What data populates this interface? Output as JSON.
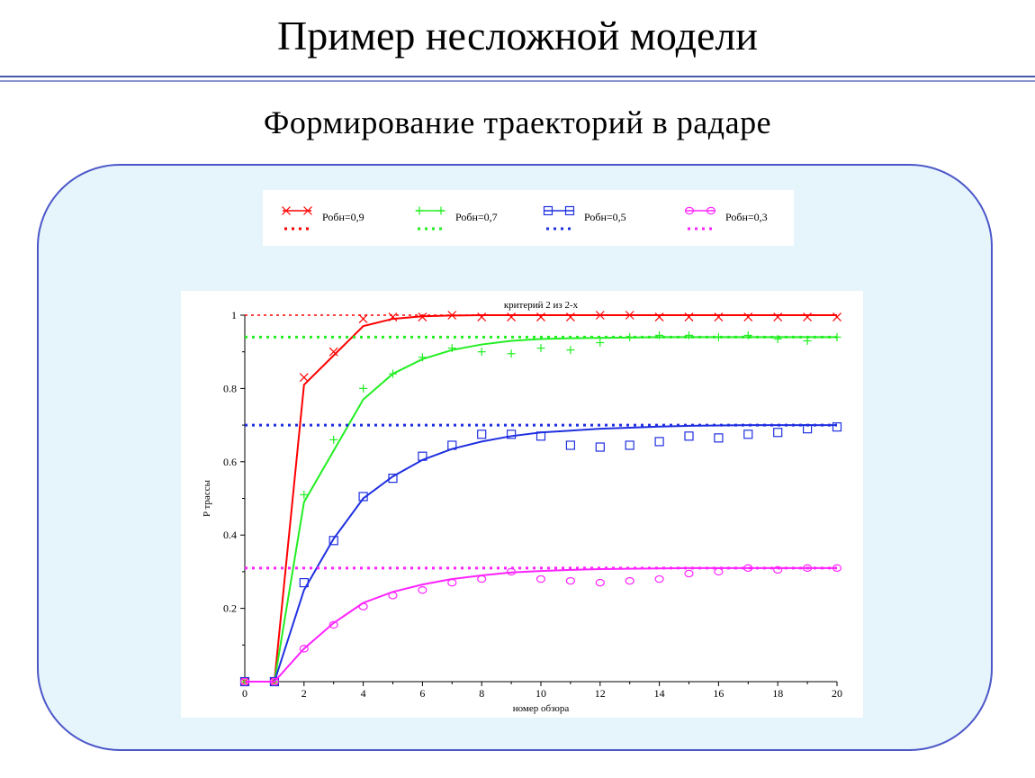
{
  "slide": {
    "title": "Пример несложной модели",
    "subtitle": "Формирование  траекторий  в радаре"
  },
  "colors": {
    "red": "#ff0000",
    "green": "#22ee22",
    "blue": "#1f2fe0",
    "magenta": "#ff22ff",
    "panel_border": "#4b57c8",
    "panel_fill": "#e6f4fb",
    "title_rule": "#4a5aa8"
  },
  "chart_data": {
    "type": "line",
    "title": "критерий 2 из 2-х",
    "xlabel": "номер обзора",
    "ylabel": "P трассы",
    "xlim": [
      0,
      20
    ],
    "ylim": [
      0,
      1
    ],
    "x_ticks": [
      "0",
      "2",
      "4",
      "6",
      "8",
      "10",
      "12",
      "14",
      "16",
      "18",
      "20"
    ],
    "y_ticks": [
      "0.2",
      "0.4",
      "0.6",
      "0.8",
      "1"
    ],
    "grid": false,
    "legend_position": "above chart",
    "legend": [
      {
        "label": "Робн=0,9",
        "color": "red",
        "marker": "x-mark-icon"
      },
      {
        "label": "Робн=0,7",
        "color": "green",
        "marker": "plus-mark-icon"
      },
      {
        "label": "Робн=0,5",
        "color": "blue",
        "marker": "square-mark-icon"
      },
      {
        "label": "Робн=0,3",
        "color": "magenta",
        "marker": "circle-mark-icon"
      }
    ],
    "series": [
      {
        "name": "Робн=0,9",
        "color": "red",
        "marker": "x",
        "limit": 1.0,
        "theory_x": [
          0,
          1,
          2,
          3,
          4,
          5,
          6,
          7,
          8,
          9,
          10,
          11,
          12,
          13,
          14,
          15,
          16,
          17,
          18,
          19,
          20
        ],
        "theory_y": [
          0,
          0,
          0.81,
          0.89,
          0.97,
          0.99,
          0.997,
          0.999,
          1,
          1,
          1,
          1,
          1,
          1,
          1,
          1,
          1,
          1,
          1,
          1,
          1
        ],
        "sim_x": [
          0,
          1,
          2,
          3,
          4,
          5,
          6,
          7,
          8,
          9,
          10,
          11,
          12,
          13,
          14,
          15,
          16,
          17,
          18,
          19,
          20
        ],
        "sim_y": [
          0,
          0,
          0.83,
          0.9,
          0.99,
          0.995,
          0.995,
          1,
          0.995,
          0.995,
          0.995,
          0.995,
          1,
          1,
          0.995,
          0.995,
          0.995,
          0.995,
          0.995,
          0.995,
          0.995
        ]
      },
      {
        "name": "Робн=0,7",
        "color": "green",
        "marker": "+",
        "limit": 0.94,
        "theory_x": [
          0,
          1,
          2,
          3,
          4,
          5,
          6,
          7,
          8,
          9,
          10,
          11,
          12,
          13,
          14,
          15,
          16,
          17,
          18,
          19,
          20
        ],
        "theory_y": [
          0,
          0,
          0.49,
          0.63,
          0.77,
          0.84,
          0.88,
          0.905,
          0.92,
          0.93,
          0.935,
          0.937,
          0.938,
          0.939,
          0.94,
          0.94,
          0.94,
          0.94,
          0.94,
          0.94,
          0.94
        ],
        "sim_x": [
          0,
          1,
          2,
          3,
          4,
          5,
          6,
          7,
          8,
          9,
          10,
          11,
          12,
          13,
          14,
          15,
          16,
          17,
          18,
          19,
          20
        ],
        "sim_y": [
          0,
          0,
          0.51,
          0.66,
          0.8,
          0.84,
          0.885,
          0.91,
          0.9,
          0.895,
          0.91,
          0.905,
          0.925,
          0.94,
          0.945,
          0.945,
          0.94,
          0.945,
          0.935,
          0.93,
          0.94
        ]
      },
      {
        "name": "Робн=0,5",
        "color": "blue",
        "marker": "square",
        "limit": 0.7,
        "theory_x": [
          0,
          1,
          2,
          3,
          4,
          5,
          6,
          7,
          8,
          9,
          10,
          11,
          12,
          13,
          14,
          15,
          16,
          17,
          18,
          19,
          20
        ],
        "theory_y": [
          0,
          0,
          0.25,
          0.39,
          0.5,
          0.56,
          0.605,
          0.635,
          0.655,
          0.67,
          0.68,
          0.685,
          0.69,
          0.693,
          0.696,
          0.698,
          0.699,
          0.7,
          0.7,
          0.7,
          0.7
        ],
        "sim_x": [
          0,
          1,
          2,
          3,
          4,
          5,
          6,
          7,
          8,
          9,
          10,
          11,
          12,
          13,
          14,
          15,
          16,
          17,
          18,
          19,
          20
        ],
        "sim_y": [
          0,
          0,
          0.27,
          0.385,
          0.505,
          0.555,
          0.615,
          0.645,
          0.675,
          0.675,
          0.67,
          0.645,
          0.64,
          0.645,
          0.655,
          0.67,
          0.665,
          0.675,
          0.68,
          0.69,
          0.695
        ]
      },
      {
        "name": "Робн=0,3",
        "color": "magenta",
        "marker": "circle",
        "limit": 0.31,
        "theory_x": [
          0,
          1,
          2,
          3,
          4,
          5,
          6,
          7,
          8,
          9,
          10,
          11,
          12,
          13,
          14,
          15,
          16,
          17,
          18,
          19,
          20
        ],
        "theory_y": [
          0,
          0,
          0.09,
          0.16,
          0.215,
          0.245,
          0.265,
          0.28,
          0.29,
          0.298,
          0.302,
          0.305,
          0.307,
          0.308,
          0.309,
          0.31,
          0.31,
          0.31,
          0.31,
          0.31,
          0.31
        ],
        "sim_x": [
          0,
          1,
          2,
          3,
          4,
          5,
          6,
          7,
          8,
          9,
          10,
          11,
          12,
          13,
          14,
          15,
          16,
          17,
          18,
          19,
          20
        ],
        "sim_y": [
          0,
          0,
          0.09,
          0.155,
          0.205,
          0.235,
          0.25,
          0.27,
          0.28,
          0.3,
          0.28,
          0.275,
          0.27,
          0.275,
          0.28,
          0.295,
          0.3,
          0.31,
          0.305,
          0.31,
          0.31
        ]
      }
    ]
  }
}
